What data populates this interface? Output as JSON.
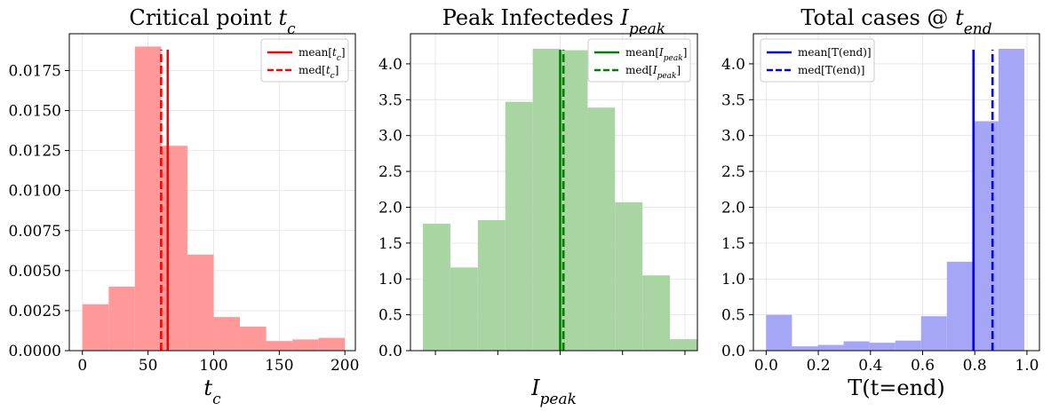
{
  "chart_data": [
    {
      "type": "bar",
      "title": "Critical point",
      "title_math": "t",
      "title_sub": "c",
      "xlabel": "t",
      "xlabel_sub": "c",
      "color": "#ff9999",
      "xlim": [
        -10,
        208
      ],
      "ylim": [
        0,
        0.0198
      ],
      "xticks": [
        0,
        50,
        100,
        150,
        200
      ],
      "xtick_labels": [
        "0",
        "50",
        "100",
        "150",
        "200"
      ],
      "yticks": [
        0.0,
        0.0025,
        0.005,
        0.0075,
        0.01,
        0.0125,
        0.015,
        0.0175
      ],
      "ytick_labels": [
        "0.0000",
        "0.0025",
        "0.0050",
        "0.0075",
        "0.0100",
        "0.0125",
        "0.0150",
        "0.0175"
      ],
      "bin_edges": [
        0,
        20,
        40,
        60,
        80,
        100,
        120,
        140,
        160,
        180,
        200
      ],
      "values": [
        0.0029,
        0.004,
        0.019,
        0.0128,
        0.006,
        0.0021,
        0.0015,
        0.0006,
        0.0007,
        0.0008
      ],
      "mean": 65,
      "median": 60,
      "line_color": "#ff0000",
      "legend": {
        "position": "upper right",
        "entries": [
          {
            "label": "mean[",
            "math": "t",
            "sub": "c",
            "close": "]",
            "style": "solid"
          },
          {
            "label": "med[",
            "math": "t",
            "sub": "c",
            "close": "]",
            "style": "dashed"
          }
        ]
      },
      "grid": true
    },
    {
      "type": "bar",
      "title": "Peak Infectedes",
      "title_math": "I",
      "title_sub": "peak",
      "xlabel": "I",
      "xlabel_sub": "peak",
      "color": "#a8d5a2",
      "xlim": [
        -0.1,
        1.05
      ],
      "ylim": [
        0,
        4.42
      ],
      "xticks": [
        0.0,
        0.25,
        0.5,
        0.75,
        1.0
      ],
      "xtick_labels": [
        "",
        "",
        "",
        "",
        ""
      ],
      "yticks": [
        0,
        0.5,
        1,
        1.5,
        2,
        2.5,
        3,
        3.5,
        4
      ],
      "ytick_labels": [
        "0.0",
        "0.5",
        "1.0",
        "1.5",
        "2.0",
        "2.5",
        "3.0",
        "3.5",
        "4.0"
      ],
      "bin_edges": [
        -0.05,
        0.06,
        0.17,
        0.28,
        0.39,
        0.5,
        0.61,
        0.72,
        0.83,
        0.94,
        1.05
      ],
      "values": [
        1.77,
        1.16,
        1.82,
        3.47,
        4.21,
        4.19,
        3.39,
        2.07,
        1.05,
        0.16
      ],
      "mean": 0.5,
      "median": 0.513,
      "line_color": "#008000",
      "legend": {
        "position": "upper right",
        "entries": [
          {
            "label": "mean[",
            "math": "I",
            "sub": "peak",
            "close": "]",
            "style": "solid"
          },
          {
            "label": "med[",
            "math": "I",
            "sub": "peak",
            "close": "]",
            "style": "dashed"
          }
        ]
      },
      "grid": true
    },
    {
      "type": "bar",
      "title": "Total cases @",
      "title_math": "t",
      "title_sub": "end",
      "xlabel": "T(t=end)",
      "xlabel_sub": "",
      "color": "#a6a6f7",
      "xlim": [
        -0.049,
        1.048
      ],
      "ylim": [
        0,
        4.42
      ],
      "xticks": [
        0.0,
        0.2,
        0.4,
        0.6,
        0.8,
        1.0
      ],
      "xtick_labels": [
        "0.0",
        "0.2",
        "0.4",
        "0.6",
        "0.8",
        "1.0"
      ],
      "yticks": [
        0,
        0.5,
        1,
        1.5,
        2,
        2.5,
        3,
        3.5,
        4
      ],
      "ytick_labels": [
        "0.0",
        "0.5",
        "1.0",
        "1.5",
        "2.0",
        "2.5",
        "3.0",
        "3.5",
        "4.0"
      ],
      "bin_edges": [
        0.0,
        0.099,
        0.198,
        0.297,
        0.396,
        0.495,
        0.594,
        0.693,
        0.792,
        0.891,
        0.99
      ],
      "values": [
        0.5,
        0.06,
        0.08,
        0.13,
        0.11,
        0.14,
        0.48,
        1.24,
        3.2,
        4.21
      ],
      "mean": 0.795,
      "median": 0.868,
      "line_color": "#0000ee",
      "legend": {
        "position": "upper left",
        "entries": [
          {
            "label": "mean[T(end)]",
            "math": "",
            "sub": "",
            "close": "",
            "style": "solid"
          },
          {
            "label": "med[T(end)]",
            "math": "",
            "sub": "",
            "close": "",
            "style": "dashed"
          }
        ]
      },
      "grid": true
    }
  ]
}
